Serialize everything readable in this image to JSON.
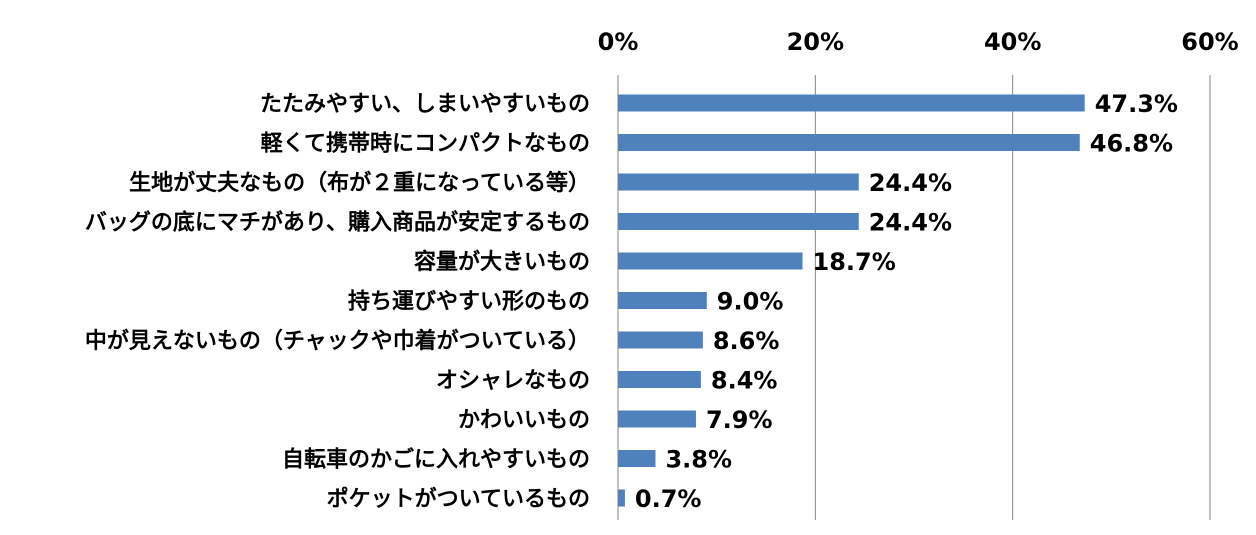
{
  "chart_data": {
    "type": "bar",
    "orientation": "horizontal",
    "categories": [
      "たたみやすい、しまいやすいもの",
      "軽くて携帯時にコンパクトなもの",
      "生地が丈夫なもの（布が２重になっている等）",
      "バッグの底にマチがあり、購入商品が安定するもの",
      "容量が大きいもの",
      "持ち運びやすい形のもの",
      "中が見えないもの（チャックや巾着がついている）",
      "オシャレなもの",
      "かわいいもの",
      "自転車のかごに入れやすいもの",
      "ポケットがついているもの"
    ],
    "values": [
      47.3,
      46.8,
      24.4,
      24.4,
      18.7,
      9.0,
      8.6,
      8.4,
      7.9,
      3.8,
      0.7
    ],
    "data_labels": [
      "47.3%",
      "46.8%",
      "24.4%",
      "24.4%",
      "18.7%",
      "9.0%",
      "8.6%",
      "8.4%",
      "7.9%",
      "3.8%",
      "0.7%"
    ],
    "x_ticks": [
      0,
      20,
      40,
      60
    ],
    "x_tick_labels": [
      "0%",
      "20%",
      "40%",
      "60%"
    ],
    "xlim": [
      0,
      60
    ],
    "axis_position": "top",
    "grid": true,
    "bar_color": "#4F81BD",
    "grid_color": "#868686"
  }
}
